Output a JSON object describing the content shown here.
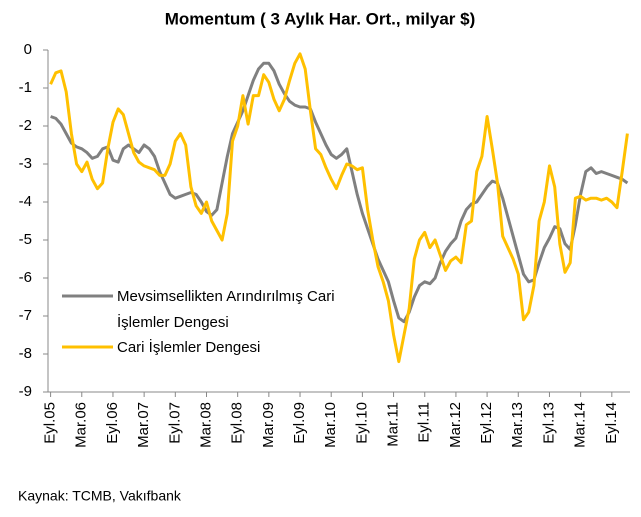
{
  "chart_data": {
    "type": "line",
    "title": "Momentum ( 3 Aylık Har. Ort., milyar $)",
    "source": "Kaynak: TCMB, Vakıfbank",
    "categories": [
      "Eyl.05",
      null,
      null,
      null,
      null,
      null,
      "Mar.06",
      null,
      null,
      null,
      null,
      null,
      "Eyl.06",
      null,
      null,
      null,
      null,
      null,
      "Mar.07",
      null,
      null,
      null,
      null,
      null,
      "Eyl.07",
      null,
      null,
      null,
      null,
      null,
      "Mar.08",
      null,
      null,
      null,
      null,
      null,
      "Eyl.08",
      null,
      null,
      null,
      null,
      null,
      "Mar.09",
      null,
      null,
      null,
      null,
      null,
      "Eyl.09",
      null,
      null,
      null,
      null,
      null,
      "Mar.10",
      null,
      null,
      null,
      null,
      null,
      "Eyl.10",
      null,
      null,
      null,
      null,
      null,
      "Mar.11",
      null,
      null,
      null,
      null,
      null,
      "Eyl.11",
      null,
      null,
      null,
      null,
      null,
      "Mar.12",
      null,
      null,
      null,
      null,
      null,
      "Eyl.12",
      null,
      null,
      null,
      null,
      null,
      "Mar.13",
      null,
      null,
      null,
      null,
      null,
      "Eyl.13",
      null,
      null,
      null,
      null,
      null,
      "Mar.14",
      null,
      null,
      null,
      null,
      null,
      "Eyl.14",
      null,
      null,
      null
    ],
    "series": [
      {
        "name": "Mevsimsellikten Arındırılmış Cari İşlemler Dengesi",
        "color": "#808080",
        "values": [
          -1.75,
          -1.8,
          -1.95,
          -2.2,
          -2.45,
          -2.55,
          -2.6,
          -2.7,
          -2.85,
          -2.8,
          -2.6,
          -2.55,
          -2.9,
          -2.95,
          -2.6,
          -2.5,
          -2.6,
          -2.7,
          -2.5,
          -2.6,
          -2.8,
          -3.2,
          -3.5,
          -3.8,
          -3.9,
          -3.85,
          -3.8,
          -3.75,
          -3.8,
          -4.0,
          -4.25,
          -4.35,
          -4.2,
          -3.5,
          -2.8,
          -2.2,
          -1.9,
          -1.6,
          -1.2,
          -0.8,
          -0.5,
          -0.35,
          -0.35,
          -0.55,
          -0.9,
          -1.15,
          -1.35,
          -1.45,
          -1.5,
          -1.5,
          -1.55,
          -1.9,
          -2.2,
          -2.5,
          -2.75,
          -2.85,
          -2.75,
          -2.6,
          -3.2,
          -3.8,
          -4.3,
          -4.7,
          -5.1,
          -5.5,
          -5.8,
          -6.1,
          -6.6,
          -7.05,
          -7.15,
          -6.9,
          -6.5,
          -6.2,
          -6.1,
          -6.15,
          -6.0,
          -5.6,
          -5.3,
          -5.1,
          -4.95,
          -4.5,
          -4.2,
          -4.05,
          -4.0,
          -3.8,
          -3.6,
          -3.45,
          -3.5,
          -3.9,
          -4.4,
          -4.9,
          -5.4,
          -5.9,
          -6.1,
          -6.05,
          -5.6,
          -5.2,
          -4.95,
          -4.65,
          -4.7,
          -5.1,
          -5.25,
          -4.6,
          -3.8,
          -3.2,
          -3.1,
          -3.25,
          -3.2,
          -3.25,
          -3.3,
          -3.35,
          -3.4,
          -3.5
        ]
      },
      {
        "name": "Cari İşlemler Dengesi",
        "color": "#ffc000",
        "values": [
          -0.9,
          -0.6,
          -0.55,
          -1.1,
          -2.2,
          -3.0,
          -3.2,
          -2.95,
          -3.4,
          -3.65,
          -3.5,
          -2.6,
          -1.9,
          -1.55,
          -1.7,
          -2.2,
          -2.7,
          -2.95,
          -3.05,
          -3.1,
          -3.15,
          -3.3,
          -3.3,
          -3.0,
          -2.4,
          -2.2,
          -2.5,
          -3.6,
          -4.1,
          -4.3,
          -4.0,
          -4.5,
          -4.75,
          -5.0,
          -4.3,
          -2.4,
          -2.0,
          -1.2,
          -1.95,
          -1.2,
          -1.2,
          -0.65,
          -0.85,
          -1.3,
          -1.6,
          -1.3,
          -0.8,
          -0.35,
          -0.1,
          -0.5,
          -1.6,
          -2.6,
          -2.75,
          -3.1,
          -3.4,
          -3.65,
          -3.3,
          -3.0,
          -3.05,
          -3.15,
          -3.1,
          -4.2,
          -5.0,
          -5.7,
          -6.1,
          -6.6,
          -7.5,
          -8.2,
          -7.5,
          -6.8,
          -5.5,
          -5.0,
          -4.8,
          -5.2,
          -5.0,
          -5.4,
          -5.8,
          -5.55,
          -5.45,
          -5.6,
          -4.6,
          -4.5,
          -3.2,
          -2.8,
          -1.75,
          -2.6,
          -3.5,
          -4.9,
          -5.2,
          -5.5,
          -5.9,
          -7.1,
          -6.9,
          -6.2,
          -4.5,
          -4.0,
          -3.05,
          -3.6,
          -5.1,
          -5.85,
          -5.6,
          -3.9,
          -3.85,
          -3.95,
          -3.9,
          -3.9,
          -3.95,
          -3.9,
          -4.0,
          -4.15,
          -3.2,
          -2.2
        ]
      }
    ],
    "ylim": [
      -9,
      0
    ],
    "yticks": [
      0,
      -1,
      -2,
      -3,
      -4,
      -5,
      -6,
      -7,
      -8,
      -9
    ]
  }
}
